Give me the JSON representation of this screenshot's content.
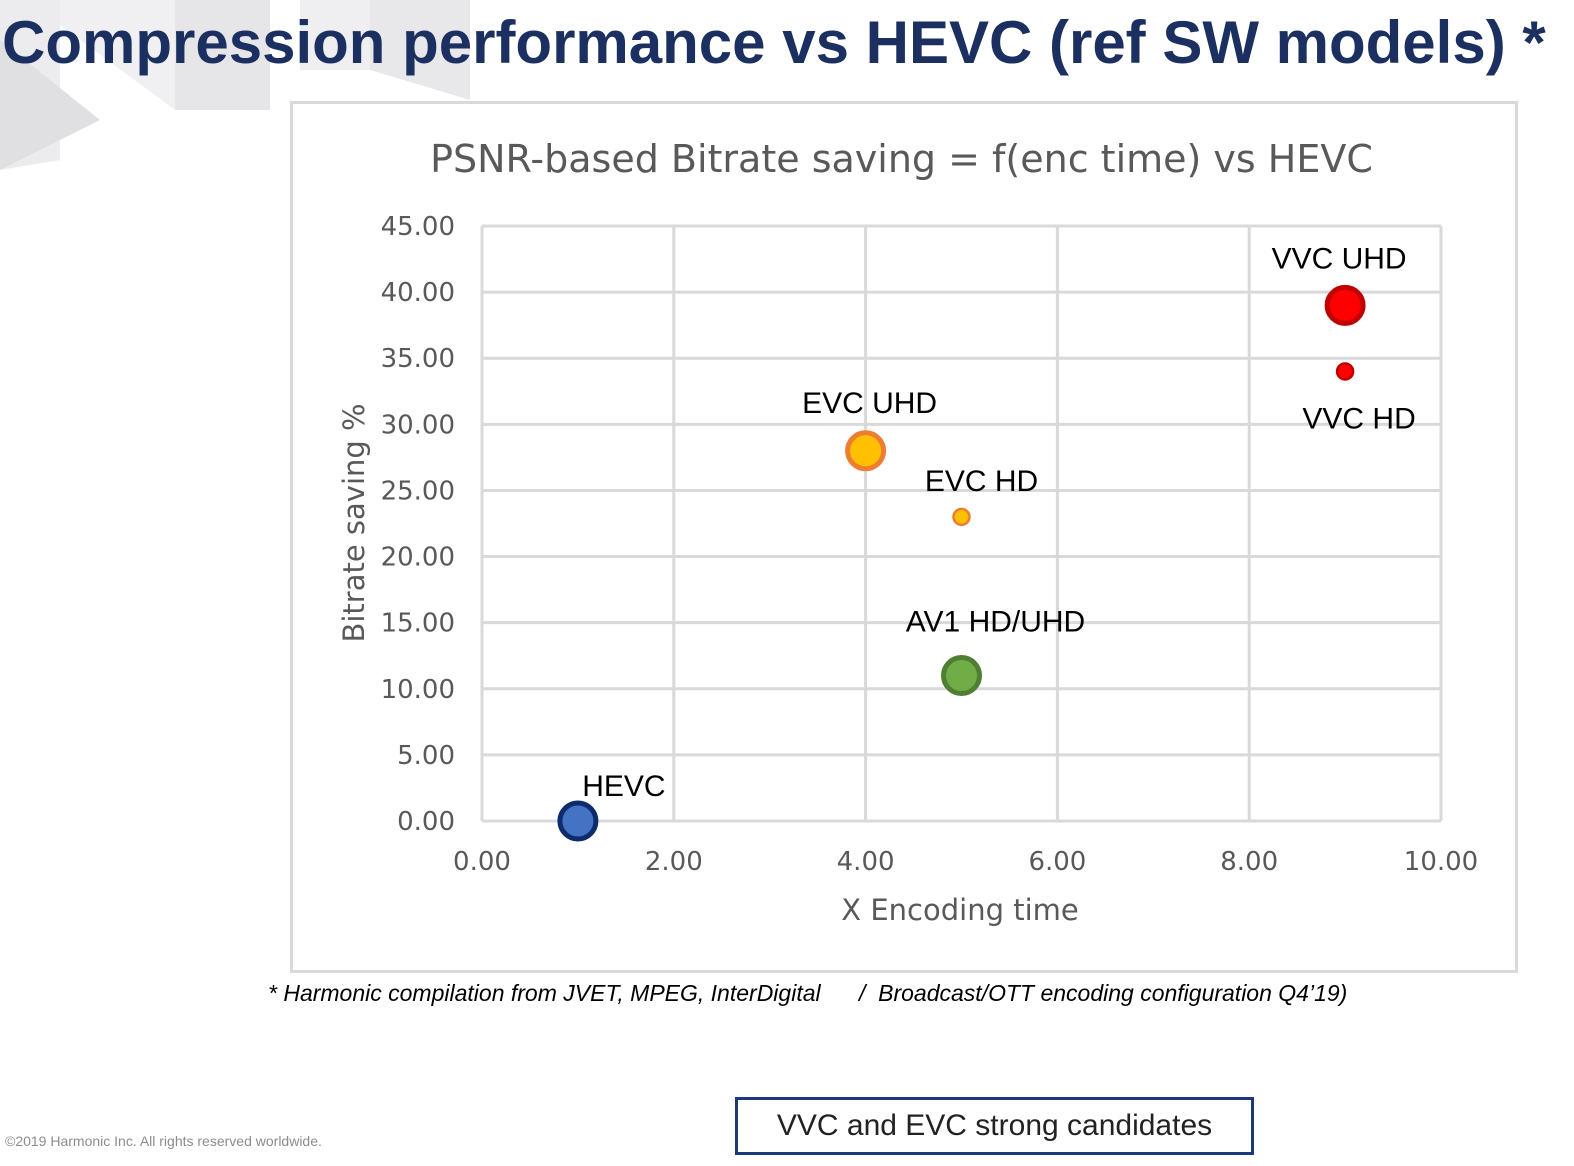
{
  "slide": {
    "title": "Compression performance vs HEVC (ref SW models) *",
    "footnote": "* Harmonic compilation from JVET, MPEG, InterDigital      /  Broadcast/OTT encoding configuration Q4’19)",
    "copyright": "©2019 Harmonic Inc. All rights reserved worldwide.",
    "callout": "VVC and EVC strong candidates",
    "title_color": "#1b3060"
  },
  "chart_data": {
    "type": "scatter",
    "title": "PSNR-based Bitrate saving = f(enc time) vs HEVC",
    "xlabel": "X Encoding time",
    "ylabel": "Bitrate saving %",
    "xlim": [
      0,
      10
    ],
    "ylim": [
      0,
      45
    ],
    "xticks": [
      "0.00",
      "2.00",
      "4.00",
      "6.00",
      "8.00",
      "10.00"
    ],
    "yticks": [
      "0.00",
      "5.00",
      "10.00",
      "15.00",
      "20.00",
      "25.00",
      "30.00",
      "35.00",
      "40.00",
      "45.00"
    ],
    "grid": true,
    "legend": "none",
    "points": [
      {
        "label": "HEVC",
        "x": 1,
        "y": 0,
        "fill": "#4472c4",
        "stroke": "#0e2c6b",
        "size": "large"
      },
      {
        "label": "EVC UHD",
        "x": 4,
        "y": 28,
        "fill": "#ffc000",
        "stroke": "#ed7d31",
        "size": "large"
      },
      {
        "label": "EVC HD",
        "x": 5,
        "y": 23,
        "fill": "#ffc000",
        "stroke": "#ed7d31",
        "size": "small"
      },
      {
        "label": "AV1 HD/UHD",
        "x": 5,
        "y": 11,
        "fill": "#70ad47",
        "stroke": "#507e32",
        "size": "large"
      },
      {
        "label": "VVC UHD",
        "x": 9,
        "y": 39,
        "fill": "#ff0000",
        "stroke": "#c00000",
        "size": "large"
      },
      {
        "label": "VVC HD",
        "x": 9,
        "y": 34,
        "fill": "#ff0000",
        "stroke": "#c00000",
        "size": "small"
      }
    ]
  }
}
